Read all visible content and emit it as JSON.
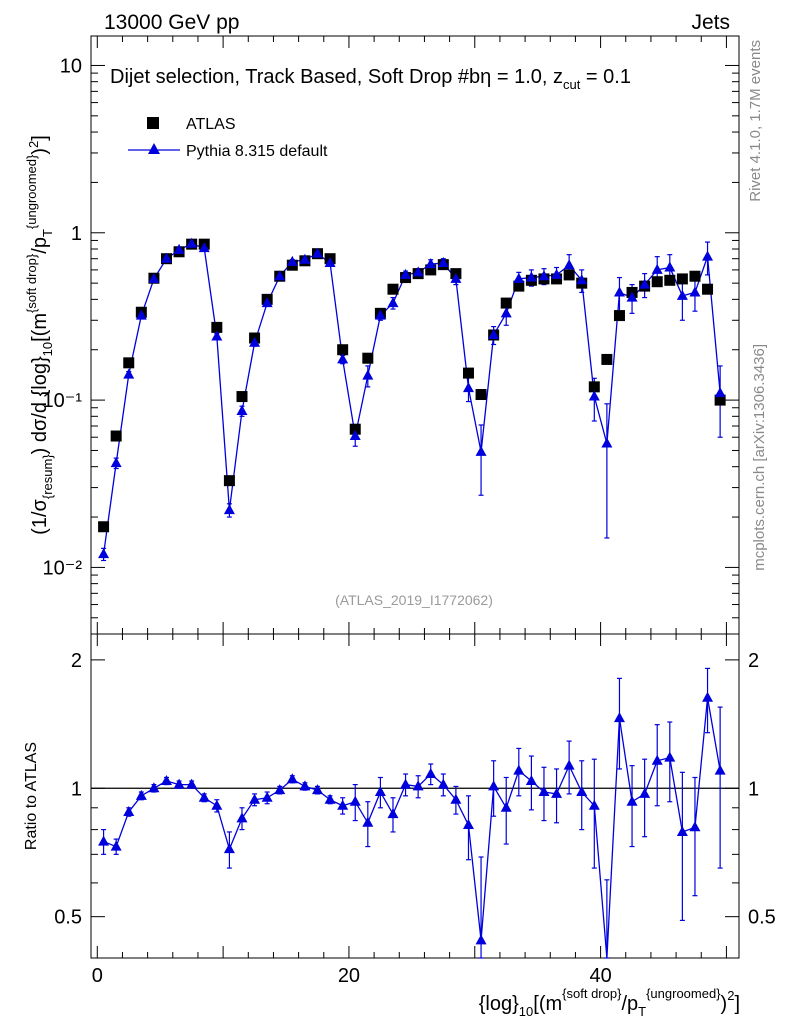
{
  "header": {
    "left": "13000 GeV pp",
    "right": "Jets"
  },
  "side_labels": {
    "rivet": "Rivet 4.1.0,  1.7M events",
    "mcplots": "mcplots.cern.ch [arXiv:1306.3436]"
  },
  "chart_data": {
    "type": "scatter",
    "title": "Dijet selection, Track Based, Soft Drop #bη = 1.0, z",
    "title_sub": "cut",
    "title_tail": " = 0.1",
    "watermark": "(ATLAS_2019_I1772062)",
    "ylabel": "(1/σ{resum}) dσ/d {log}10[(m{soft drop}/pT{ungroomed})2]",
    "ratio_ylabel": "Ratio to ATLAS",
    "xlabel": "{log}10[(m{soft drop}/pT{ungroomed})2]",
    "xlim": [
      -0.5,
      51
    ],
    "ylim_log": [
      0.004,
      15
    ],
    "ratio_ylim": [
      0.4,
      2.3
    ],
    "x_ticks": [
      "0",
      "20",
      "40"
    ],
    "x_tick_values": [
      0,
      20,
      40
    ],
    "y_ticks": [
      "10⁻²",
      "10⁻¹",
      "1",
      "10"
    ],
    "y_tick_values": [
      0.01,
      0.1,
      1,
      10
    ],
    "ratio_ticks": [
      "0.5",
      "1",
      "2"
    ],
    "ratio_tick_values": [
      0.5,
      1,
      2
    ],
    "legend": {
      "placement": "top-left",
      "entries": [
        "ATLAS",
        "Pythia 8.315 default"
      ]
    },
    "x": [
      0.5,
      1.5,
      2.5,
      3.5,
      4.5,
      5.5,
      6.5,
      7.5,
      8.5,
      9.5,
      10.5,
      11.5,
      12.5,
      13.5,
      14.5,
      15.5,
      16.5,
      17.5,
      18.5,
      19.5,
      20.5,
      21.5,
      22.5,
      23.5,
      24.5,
      25.5,
      26.5,
      27.5,
      28.5,
      29.5,
      30.5,
      31.5,
      32.5,
      33.5,
      34.5,
      35.5,
      36.5,
      37.5,
      38.5,
      39.5,
      40.5,
      41.5,
      42.5,
      43.5,
      44.5,
      45.5,
      46.5,
      47.5,
      48.5,
      49.5
    ],
    "series": [
      {
        "name": "ATLAS",
        "color": "#000000",
        "marker": "square",
        "values": [
          0.0175,
          0.061,
          0.167,
          0.335,
          0.535,
          0.7,
          0.77,
          0.855,
          0.855,
          0.272,
          0.033,
          0.105,
          0.235,
          0.4,
          0.55,
          0.64,
          0.68,
          0.75,
          0.7,
          0.2,
          0.067,
          0.178,
          0.33,
          0.46,
          0.54,
          0.57,
          0.6,
          0.645,
          0.57,
          0.145,
          0.108,
          0.245,
          0.38,
          0.48,
          0.52,
          0.53,
          0.53,
          0.56,
          0.5,
          0.12,
          0.175,
          0.32,
          0.44,
          0.48,
          0.51,
          0.52,
          0.53,
          0.55,
          0.46,
          0.1
        ]
      },
      {
        "name": "Pythia 8.315 default",
        "color": "#0000dd",
        "marker": "triangle",
        "values": [
          0.012,
          0.042,
          0.142,
          0.32,
          0.53,
          0.7,
          0.79,
          0.86,
          0.81,
          0.24,
          0.022,
          0.086,
          0.22,
          0.38,
          0.55,
          0.67,
          0.69,
          0.75,
          0.66,
          0.175,
          0.061,
          0.14,
          0.32,
          0.38,
          0.56,
          0.58,
          0.65,
          0.66,
          0.53,
          0.118,
          0.049,
          0.245,
          0.33,
          0.53,
          0.54,
          0.55,
          0.56,
          0.64,
          0.52,
          0.105,
          0.055,
          0.44,
          0.41,
          0.49,
          0.6,
          0.62,
          0.42,
          0.44,
          0.72,
          0.11
        ],
        "errors": [
          0.001,
          0.003,
          0.006,
          0.01,
          0.015,
          0.02,
          0.02,
          0.02,
          0.02,
          0.01,
          0.002,
          0.006,
          0.01,
          0.015,
          0.02,
          0.02,
          0.02,
          0.02,
          0.02,
          0.01,
          0.008,
          0.02,
          0.02,
          0.03,
          0.03,
          0.03,
          0.04,
          0.04,
          0.04,
          0.02,
          0.022,
          0.03,
          0.05,
          0.05,
          0.06,
          0.06,
          0.06,
          0.1,
          0.08,
          0.03,
          0.04,
          0.1,
          0.08,
          0.08,
          0.12,
          0.12,
          0.12,
          0.1,
          0.16,
          0.05
        ]
      }
    ],
    "ratio": {
      "values": [
        0.75,
        0.73,
        0.88,
        0.96,
        1.0,
        1.04,
        1.02,
        1.02,
        0.95,
        0.91,
        0.72,
        0.85,
        0.94,
        0.95,
        0.99,
        1.05,
        1.01,
        0.99,
        0.94,
        0.91,
        0.93,
        0.83,
        0.98,
        0.87,
        1.02,
        1.01,
        1.08,
        1.02,
        0.94,
        0.82,
        0.44,
        1.01,
        0.9,
        1.1,
        1.04,
        0.98,
        0.97,
        1.13,
        0.98,
        0.91,
        0.31,
        1.46,
        0.93,
        0.97,
        1.16,
        1.18,
        0.79,
        0.81,
        1.63,
        1.1
      ],
      "errors": [
        0.05,
        0.03,
        0.02,
        0.02,
        0.02,
        0.02,
        0.02,
        0.02,
        0.02,
        0.03,
        0.07,
        0.05,
        0.03,
        0.03,
        0.02,
        0.02,
        0.02,
        0.02,
        0.02,
        0.04,
        0.09,
        0.1,
        0.08,
        0.08,
        0.06,
        0.06,
        0.06,
        0.06,
        0.07,
        0.14,
        0.25,
        0.15,
        0.16,
        0.14,
        0.15,
        0.14,
        0.14,
        0.16,
        0.18,
        0.26,
        0.3,
        0.35,
        0.2,
        0.2,
        0.25,
        0.25,
        0.3,
        0.25,
        0.28,
        0.45
      ]
    }
  }
}
